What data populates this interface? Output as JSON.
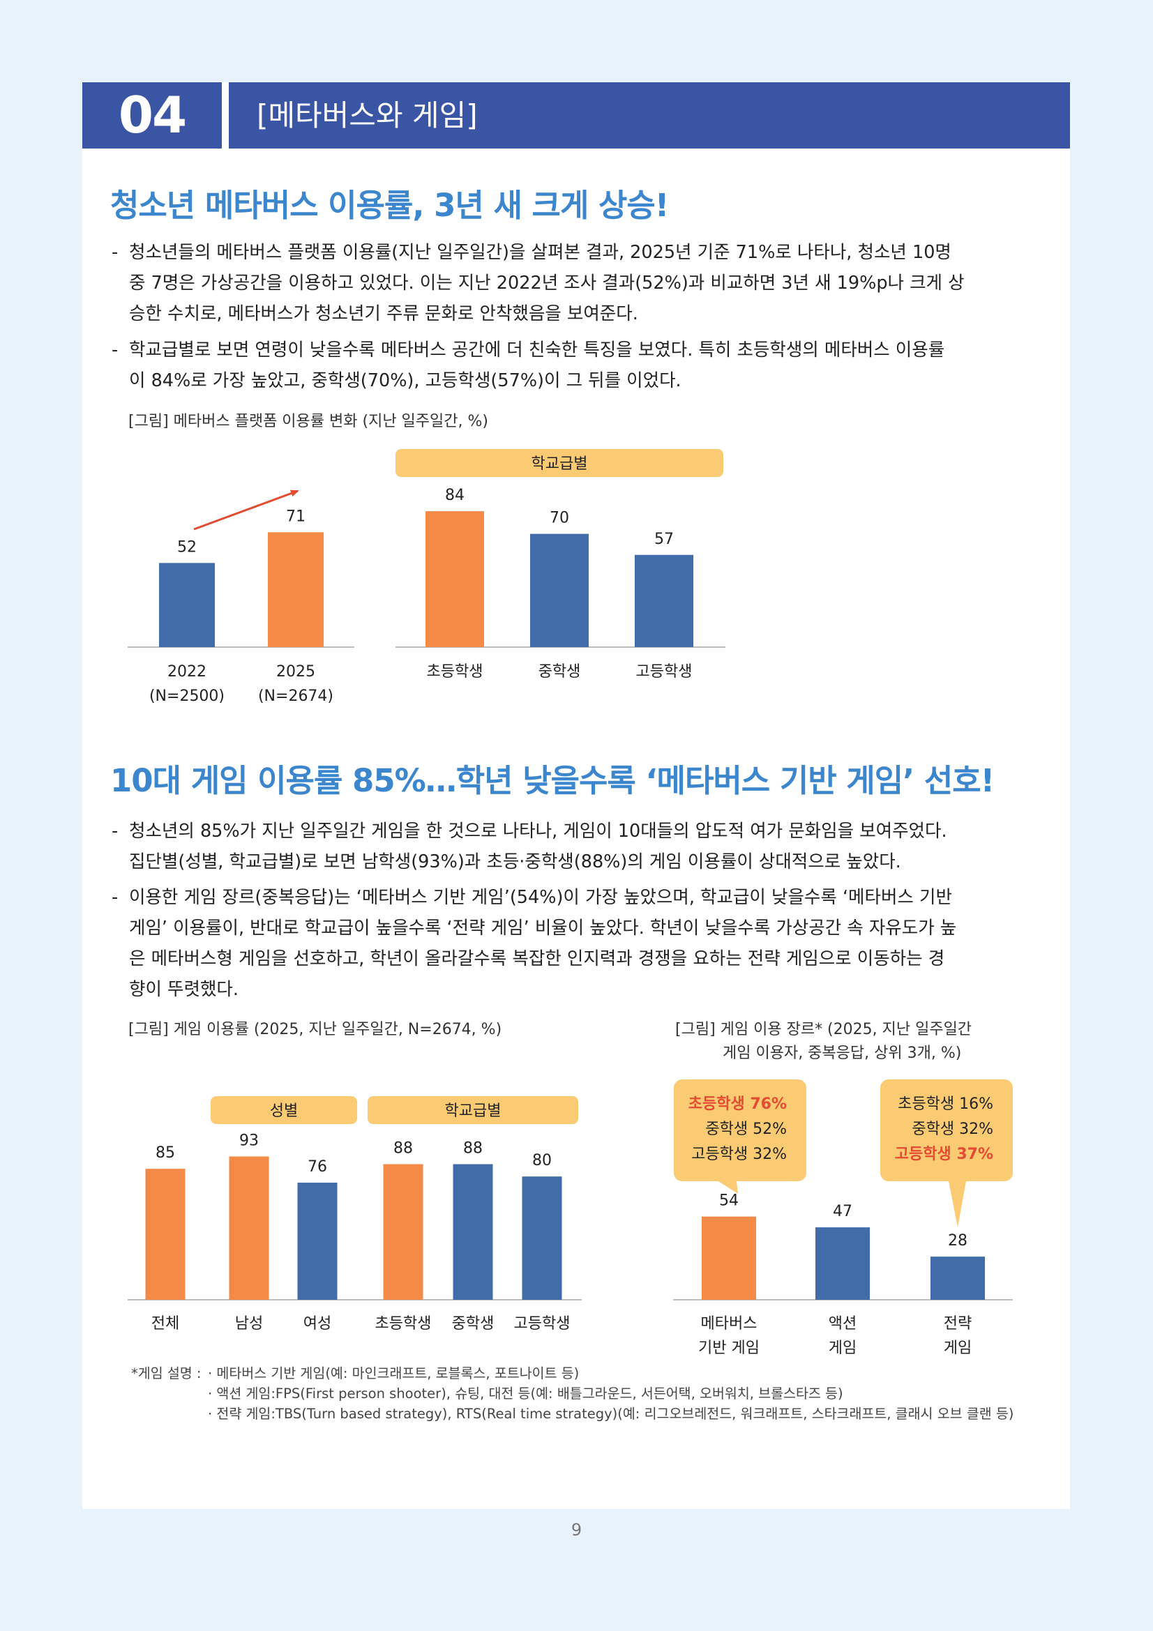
{
  "header": {
    "number": "04",
    "title": "[메타버스와 게임]"
  },
  "section1": {
    "heading": "청소년 메타버스 이용률, 3년 새 크게 상승!",
    "bullet_marker": "-",
    "bullets": [
      [
        "청소년들의 메타버스 플랫폼 이용률(지난 일주일간)을 살펴본 결과, 2025년 기준 71%로 나타나, 청소년 10명",
        "중 7명은 가상공간을 이용하고 있었다. 이는 지난 2022년 조사 결과(52%)과 비교하면 3년 새 19%p나 크게 상",
        "승한 수치로, 메타버스가 청소년기 주류 문화로 안착했음을 보여준다."
      ],
      [
        "학교급별로 보면 연령이 낮을수록 메타버스 공간에 더 친숙한 특징을 보였다. 특히 초등학생의 메타버스 이용률",
        "이 84%로 가장 높았고, 중학생(70%), 고등학생(57%)이 그 뒤를 이었다."
      ]
    ],
    "figure_caption": "[그림] 메타버스 플랫폼 이용률 변화 (지난 일주일간, %)"
  },
  "section2": {
    "heading": "10대 게임 이용률 85%…학년 낮을수록 ‘메타버스 기반 게임’ 선호!",
    "bullet_marker": "-",
    "bullets": [
      [
        "청소년의 85%가 지난 일주일간 게임을 한 것으로 나타나, 게임이 10대들의 압도적 여가 문화임을 보여주었다.",
        "집단별(성별, 학교급별)로 보면 남학생(93%)과 초등·중학생(88%)의 게임 이용률이 상대적으로 높았다."
      ],
      [
        "이용한 게임 장르(중복응답)는 ‘메타버스 기반 게임’(54%)이 가장 높았으며, 학교급이 낮을수록 ‘메타버스 기반",
        "게임’ 이용률이, 반대로 학교급이 높을수록 ‘전략 게임’ 비율이 높았다. 학년이 낮을수록 가상공간 속 자유도가 높",
        "은 메타버스형 게임을 선호하고, 학년이 올라갈수록 복잡한 인지력과 경쟁을 요하는 전략 게임으로 이동하는 경",
        "향이 뚜렷했다."
      ]
    ],
    "figure_caption_left": "[그림] 게임 이용률 (2025, 지난 일주일간, N=2674, %)",
    "figure_caption_right": [
      "[그림] 게임 이용 장르* (2025, 지난 일주일간",
      "게임 이용자, 중복응답, 상위 3개, %)"
    ]
  },
  "colors": {
    "orange": "#f58a47",
    "blue": "#426baa",
    "banner": "#fbcb74",
    "heading": "#3b86cc",
    "header_bg": "#3a55a4",
    "highlight": "#e34b32"
  },
  "chart_data": [
    {
      "type": "bar",
      "title": "메타버스 플랫폼 이용률 변화",
      "categories": [
        [
          "2022",
          "(N=2500)"
        ],
        [
          "2025",
          "(N=2674)"
        ]
      ],
      "values": [
        52,
        71
      ],
      "colors": [
        "#426baa",
        "#f58a47"
      ],
      "annotation": "trend arrow 52→71"
    },
    {
      "type": "bar",
      "title": "학교급별",
      "group_label": "학교급별",
      "categories": [
        "초등학생",
        "중학생",
        "고등학생"
      ],
      "values": [
        84,
        70,
        57
      ],
      "colors": [
        "#f58a47",
        "#426baa",
        "#426baa"
      ]
    },
    {
      "type": "bar",
      "title": "게임 이용률",
      "groups": [
        {
          "label": "성별",
          "members": [
            "남성",
            "여성"
          ]
        },
        {
          "label": "학교급별",
          "members": [
            "초등학생",
            "중학생",
            "고등학생"
          ]
        }
      ],
      "categories": [
        "전체",
        "남성",
        "여성",
        "초등학생",
        "중학생",
        "고등학생"
      ],
      "values": [
        85,
        93,
        76,
        88,
        88,
        80
      ],
      "colors": [
        "#f58a47",
        "#f58a47",
        "#426baa",
        "#f58a47",
        "#426baa",
        "#426baa"
      ]
    },
    {
      "type": "bar",
      "title": "게임 이용 장르*",
      "categories": [
        [
          "메타버스",
          "기반 게임"
        ],
        [
          "액션",
          "게임"
        ],
        [
          "전략",
          "게임"
        ]
      ],
      "values": [
        54,
        47,
        28
      ],
      "colors": [
        "#f58a47",
        "#426baa",
        "#426baa"
      ],
      "callouts": [
        {
          "bar": 0,
          "lines": [
            {
              "text": "초등학생 76%",
              "highlight": true
            },
            {
              "text": "중학생 52%",
              "highlight": false
            },
            {
              "text": "고등학생 32%",
              "highlight": false
            }
          ]
        },
        {
          "bar": 2,
          "lines": [
            {
              "text": "초등학생 16%",
              "highlight": false
            },
            {
              "text": "중학생 32%",
              "highlight": false
            },
            {
              "text": "고등학생 37%",
              "highlight": true
            }
          ]
        }
      ]
    }
  ],
  "footnote": {
    "label": "*게임 설명 :",
    "items": [
      "·  메타버스 기반 게임(예: 마인크래프트, 로블록스, 포트나이트 등)",
      "·  액션 게임:FPS(First person shooter), 슈팅, 대전 등(예: 배틀그라운드, 서든어택, 오버워치, 브롤스타즈 등)",
      "·  전략 게임:TBS(Turn based strategy), RTS(Real time strategy)(예: 리그오브레전드, 워크래프트, 스타크래프트, 클래시 오브 클랜 등)"
    ]
  },
  "page_number": "9"
}
